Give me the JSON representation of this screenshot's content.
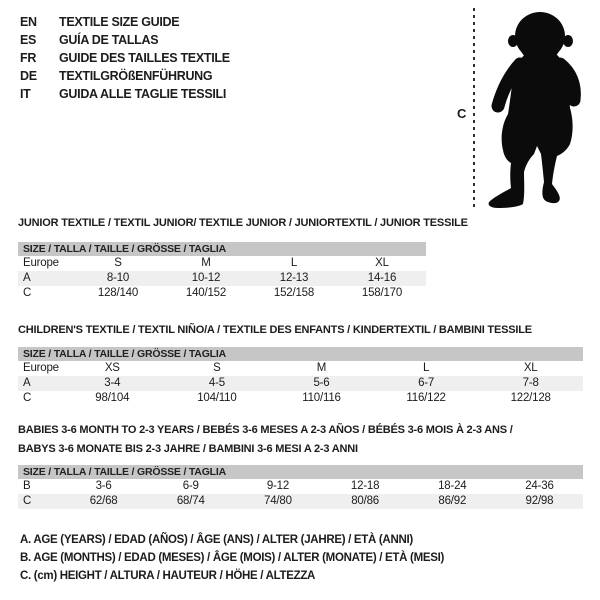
{
  "languages": [
    {
      "code": "EN",
      "label": "TEXTILE SIZE GUIDE"
    },
    {
      "code": "ES",
      "label": "GUÍA DE TALLAS"
    },
    {
      "code": "FR",
      "label": "GUIDE DES TAILLES TEXTILE"
    },
    {
      "code": "DE",
      "label": "TEXTILGRÖßENFÜHRUNG"
    },
    {
      "code": "IT",
      "label": "GUIDA ALLE TAGLIE TESSILI"
    }
  ],
  "figure": {
    "height_label": "C"
  },
  "sections": [
    {
      "title_lines": [
        "JUNIOR TEXTILE / TEXTIL JUNIOR/ TEXTILE JUNIOR / JUNIORTEXTIL / JUNIOR TESSILE"
      ],
      "size_band": "SIZE / TALLA / TAILLE / GRÖSSE / TAGLIA",
      "rows": [
        {
          "label": "Europe",
          "shaded": false,
          "values": [
            "S",
            "M",
            "L",
            "XL"
          ]
        },
        {
          "label": "A",
          "shaded": true,
          "values": [
            "8-10",
            "10-12",
            "12-13",
            "14-16"
          ]
        },
        {
          "label": "C",
          "shaded": false,
          "values": [
            "128/140",
            "140/152",
            "152/158",
            "158/170"
          ]
        }
      ]
    },
    {
      "title_lines": [
        "CHILDREN'S TEXTILE / TEXTIL NIÑO/A / TEXTILE DES ENFANTS / KINDERTEXTIL / BAMBINI TESSILE"
      ],
      "size_band": "SIZE / TALLA / TAILLE / GRÖSSE / TAGLIA",
      "rows": [
        {
          "label": "Europe",
          "shaded": false,
          "values": [
            "XS",
            "S",
            "M",
            "L",
            "XL"
          ]
        },
        {
          "label": "A",
          "shaded": true,
          "values": [
            "3-4",
            "4-5",
            "5-6",
            "6-7",
            "7-8"
          ]
        },
        {
          "label": "C",
          "shaded": false,
          "values": [
            "98/104",
            "104/110",
            "110/116",
            "116/122",
            "122/128"
          ]
        }
      ]
    },
    {
      "title_lines": [
        "BABIES 3-6 MONTH TO 2-3 YEARS / BEBÉS 3-6 MESES A 2-3 AÑOS / BÉBÉS 3-6 MOIS À 2-3 ANS /",
        "BABYS 3-6 MONATE BIS 2-3 JAHRE / BAMBINI 3-6 MESI A 2-3 ANNI"
      ],
      "size_band": "SIZE / TALLA / TAILLE / GRÖSSE / TAGLIA",
      "rows": [
        {
          "label": "B",
          "shaded": false,
          "values": [
            "3-6",
            "6-9",
            "9-12",
            "12-18",
            "18-24",
            "24-36"
          ]
        },
        {
          "label": "C",
          "shaded": true,
          "values": [
            "62/68",
            "68/74",
            "74/80",
            "80/86",
            "86/92",
            "92/98"
          ]
        }
      ]
    }
  ],
  "legend": [
    "A. AGE (YEARS) / EDAD (AÑOS) / ÂGE (ANS) / ALTER (JAHRE) / ETÀ (ANNI)",
    "B. AGE (MONTHS) / EDAD (MESES) / ÂGE (MOIS) / ALTER (MONATE) / ETÀ (MESI)",
    "C. (cm) HEIGHT / ALTURA / HAUTEUR / HÖHE / ALTEZZA"
  ],
  "colors": {
    "band": "#c6c6c6",
    "shaded_row": "#efefef",
    "silhouette": "#0b0b0b",
    "text": "#1c1c1c"
  }
}
